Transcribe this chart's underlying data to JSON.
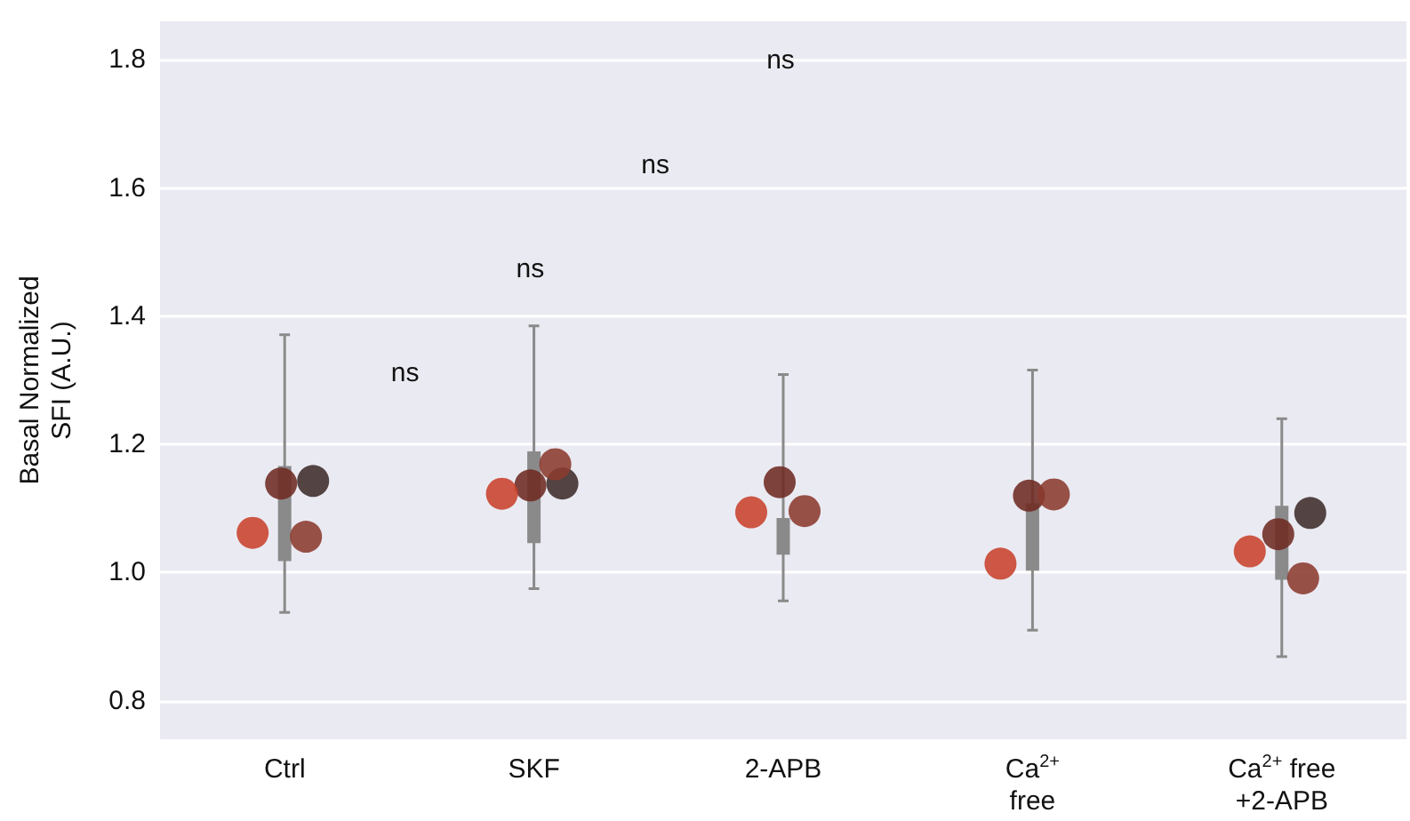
{
  "chart_data": {
    "type": "box",
    "ylabel": "Basal Normalized SFI (A.U.)",
    "categories": [
      "Ctrl",
      "SKF",
      "2-APB",
      "Ca$^{2+}$\nfree",
      "Ca$^{2+}$ free\n+2-APB"
    ],
    "ylim": [
      0.74,
      1.86
    ],
    "yticks": [
      0.8,
      {
        "value": 1,
        "label": "1.0"
      },
      1.2,
      1.4,
      1.6,
      1.8
    ],
    "grid": "y",
    "series": [
      {
        "color": "#8a8a8a",
        "boxes": [
          {
            "low": 0.938,
            "q1": 1.02,
            "median": 1.077,
            "q3": 1.164,
            "high": 1.371
          },
          {
            "low": 0.975,
            "q1": 1.048,
            "median": 1.128,
            "q3": 1.187,
            "high": 1.385
          },
          {
            "low": 0.956,
            "q1": 1.03,
            "median": 1.076,
            "q3": 1.083,
            "high": 1.309
          },
          {
            "low": 0.91,
            "q1": 1.005,
            "median": 1.079,
            "q3": 1.106,
            "high": 1.316
          },
          {
            "low": 0.869,
            "q1": 0.991,
            "median": 1.042,
            "q3": 1.102,
            "high": 1.24
          }
        ]
      },
      {
        "type": "scatter",
        "color": "#6e2a22",
        "x": [
          "Ctrl",
          "SKF",
          "2-APB",
          "Ca$^{2+}$\nfree",
          "Ca$^{2+}$ free\n+2-APB"
        ],
        "values": [
          1.139,
          1.136,
          1.141,
          1.12,
          1.06
        ]
      },
      {
        "type": "scatter",
        "color": "#3e2b2a",
        "x": [
          "Ctrl",
          "SKF",
          "Ca$^{2+}$ free\n+2-APB"
        ],
        "values": [
          1.143,
          1.139,
          1.093
        ]
      },
      {
        "type": "scatter",
        "color": "#c8412b",
        "x": [
          "Ctrl",
          "SKF",
          "2-APB",
          "Ca$^{2+}$\nfree",
          "Ca$^{2+}$ free\n+2-APB"
        ],
        "values": [
          1.062,
          1.123,
          1.094,
          1.014,
          1.033
        ]
      },
      {
        "type": "scatter",
        "color": "#8b3a2d",
        "x": [
          "Ctrl",
          "SKF",
          "2-APB",
          "Ca$^{2+}$\nfree",
          "Ca$^{2+}$ free\n+2-APB"
        ],
        "values": [
          1.056,
          1.169,
          1.096,
          1.122,
          0.991
        ]
      }
    ],
    "annotations": [
      "ns",
      "ns",
      "ns",
      "ns"
    ]
  }
}
